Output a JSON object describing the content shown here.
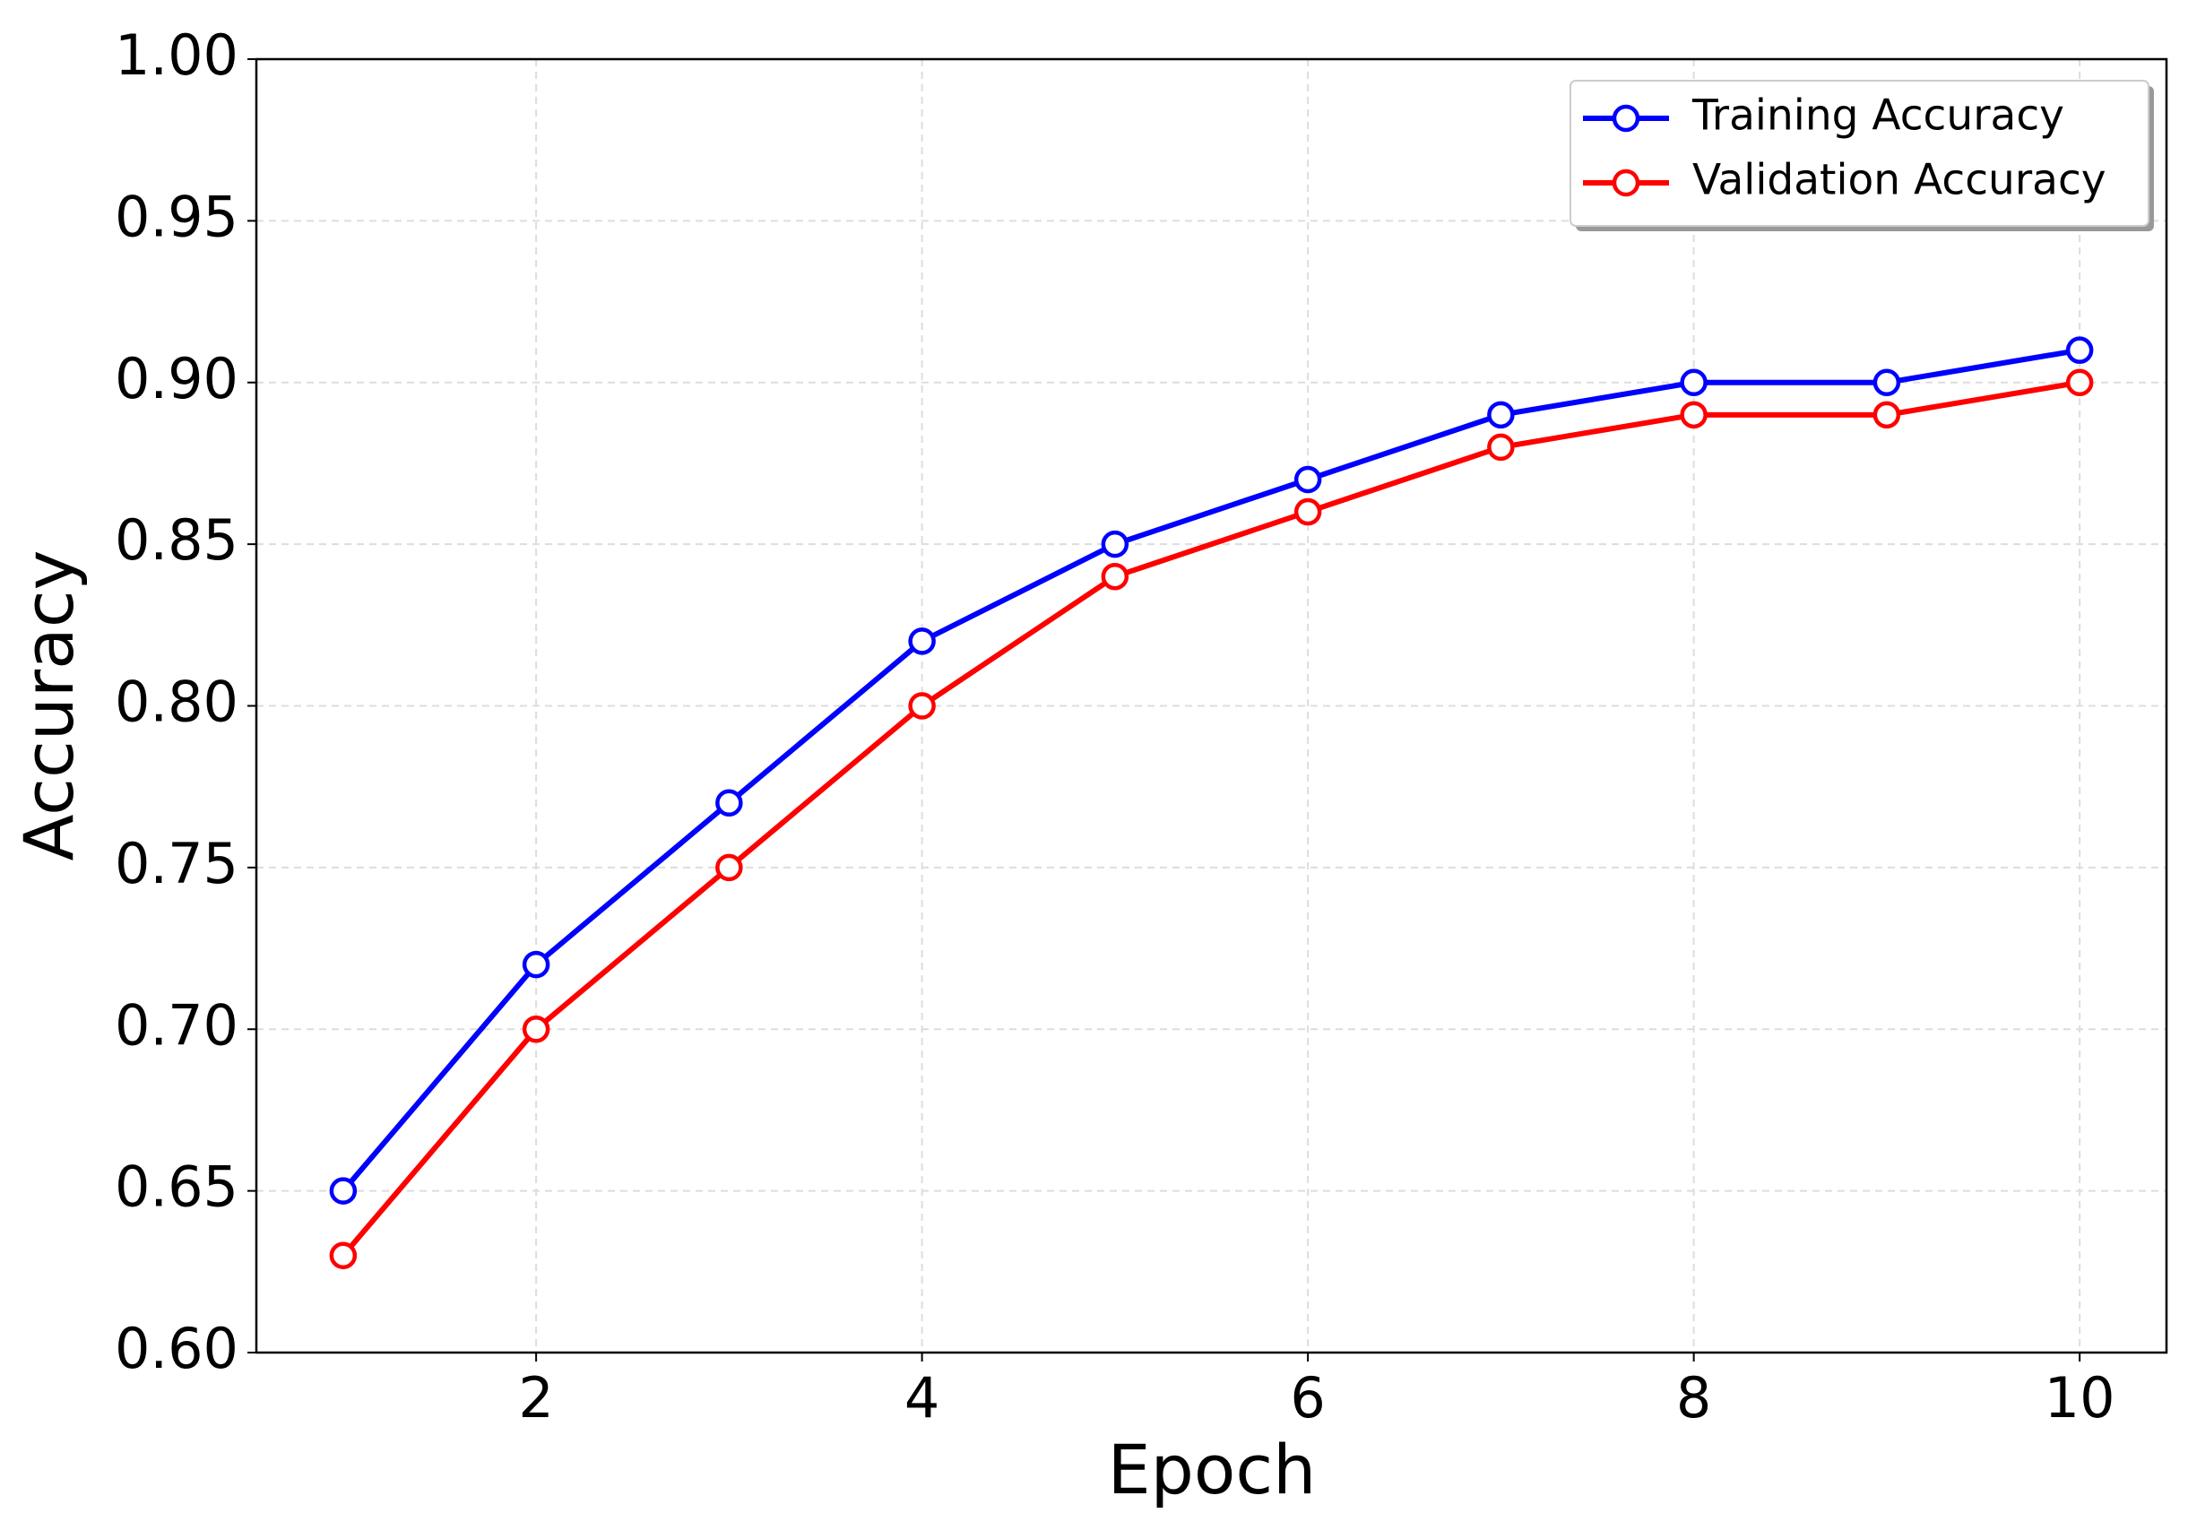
{
  "chart_data": {
    "type": "line",
    "x_label": "Epoch",
    "y_label": "Accuracy",
    "x": [
      1,
      2,
      3,
      4,
      5,
      6,
      7,
      8,
      9,
      10
    ],
    "series": [
      {
        "name": "Training Accuracy",
        "color": "#0000ff",
        "values": [
          0.65,
          0.72,
          0.77,
          0.82,
          0.85,
          0.87,
          0.89,
          0.9,
          0.9,
          0.91
        ]
      },
      {
        "name": "Validation Accuracy",
        "color": "#ff0000",
        "values": [
          0.63,
          0.7,
          0.75,
          0.8,
          0.84,
          0.86,
          0.88,
          0.89,
          0.89,
          0.9
        ]
      }
    ],
    "xlim": [
      0.55,
      10.45
    ],
    "xticks": [
      2,
      4,
      6,
      8,
      10
    ],
    "ylim": [
      0.6,
      1.0
    ],
    "yticks": [
      {
        "value": 0.6,
        "label": "0.60"
      },
      {
        "value": 0.65,
        "label": "0.65"
      },
      {
        "value": 0.7,
        "label": "0.70"
      },
      {
        "value": 0.75,
        "label": "0.75"
      },
      {
        "value": 0.8,
        "label": "0.80"
      },
      {
        "value": 0.85,
        "label": "0.85"
      },
      {
        "value": 0.9,
        "label": "0.90"
      },
      {
        "value": 0.95,
        "label": "0.95"
      },
      {
        "value": 1.0,
        "label": "1.00"
      }
    ],
    "grid": true,
    "legend": "upper right"
  }
}
